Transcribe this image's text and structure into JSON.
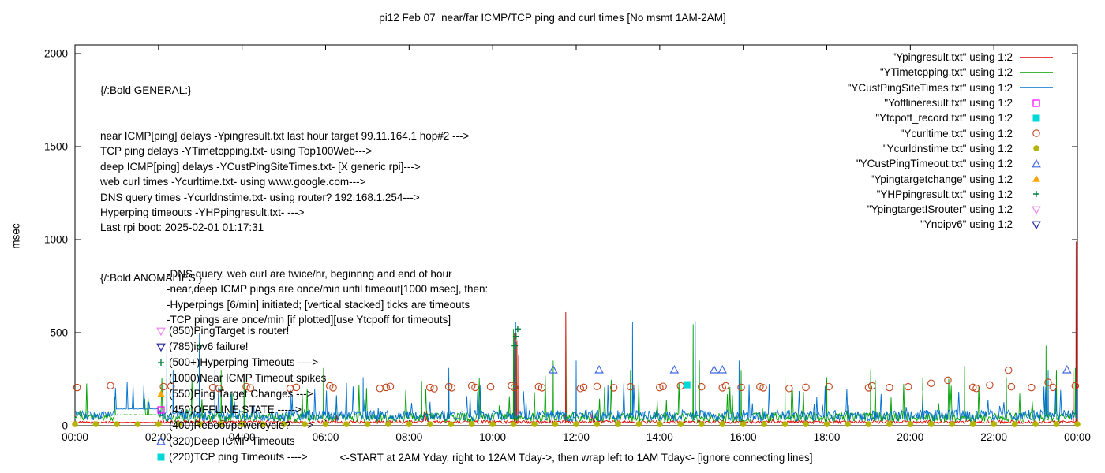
{
  "title": "pi12 Feb 07  near/far ICMP/TCP ping and curl times [No msmt 1AM-2AM]",
  "axes": {
    "ylabel": "msec",
    "xlabel": "<-START at 2AM Yday, right to 12AM Tday->, then wrap left to 1AM Tday<- [ignore connecting lines]",
    "yticks": [
      0,
      500,
      1000,
      1500,
      2000
    ],
    "xticks": [
      "00:00",
      "02:00",
      "04:00",
      "06:00",
      "08:00",
      "10:00",
      "12:00",
      "14:00",
      "16:00",
      "18:00",
      "20:00",
      "22:00",
      "00:00"
    ],
    "xrange_hours": [
      0,
      24
    ],
    "yrange": [
      0,
      2050
    ],
    "grid": false
  },
  "legend_position": "top-right",
  "legend": [
    {
      "label": "\"Ypingresult.txt\" using 1:2",
      "sample": "line",
      "color": "#dd0000"
    },
    {
      "label": "\"YTimetcpping.txt\" using 1:2",
      "sample": "line",
      "color": "#00a000"
    },
    {
      "label": "\"YCustPingSiteTimes.txt\" using 1:2",
      "sample": "line",
      "color": "#0070d0"
    },
    {
      "label": "\"Yofflineresult.txt\" using 1:2",
      "sample": "square-open",
      "color": "#ff00ff"
    },
    {
      "label": "\"Ytcpoff_record.txt\" using 1:2",
      "sample": "square-filled",
      "color": "#00d8d8"
    },
    {
      "label": "\"Ycurltime.txt\" using 1:2",
      "sample": "circle-open",
      "color": "#c0441c"
    },
    {
      "label": "\"Ycurldnstime.txt\" using 1:2",
      "sample": "circle-filled",
      "color": "#b5b500"
    },
    {
      "label": "\"YCustPingTimeout.txt\" using 1:2",
      "sample": "triangle-open",
      "color": "#4169e1"
    },
    {
      "label": "\"Ypingtargetchange\" using 1:2",
      "sample": "triangle-filled",
      "color": "#ffa500"
    },
    {
      "label": "\"YHPpingresult.txt\" using 1:2",
      "sample": "plus",
      "color": "#008040"
    },
    {
      "label": "\"YpingtargetISrouter\" using 1:2",
      "sample": "nabla-open",
      "color": "#ee82ee"
    },
    {
      "label": "\"Ynoipv6\" using 1:2",
      "sample": "nabla-open",
      "color": "#202099"
    }
  ],
  "annotations": {
    "general_header": "{/:Bold GENERAL:}",
    "general_lines": [
      "near ICMP[ping] delays -Ypingresult.txt last hour target 99.11.164.1 hop#2 --->",
      "TCP ping delays -YTimetcpping.txt- using Top100Web--->",
      "deep ICMP[ping] delays -YCustPingSiteTimes.txt- [X generic rpi]--->",
      "web curl times -Ycurltime.txt- using www.google.com--->",
      "DNS query times -Ycurldnstime.txt- using router? 192.168.1.254--->",
      "Hyperping timeouts -YHPpingresult.txt- --->",
      "Last rpi boot: 2025-02-01 01:17:31"
    ],
    "detail_lines": [
      "-DNS query, web curl are twice/hr, beginnng and end of hour",
      "-near,deep ICMP pings are once/min until timeout[1000 msec], then:",
      "-Hyperpings [6/min] initiated; [vertical stacked] ticks are timeouts",
      "-TCP pings are once/min [if plotted][use Ytcpoff for timeouts]"
    ],
    "anomalies_header": "{/:Bold ANOMALIES:}",
    "anomaly_lines": [
      {
        "marker": "nabla-open",
        "color": "#ee82ee",
        "text": "(850)PingTarget is router!"
      },
      {
        "marker": "nabla-open",
        "color": "#202099",
        "text": "(785)ipv6 failure!"
      },
      {
        "marker": "plus",
        "color": "#008040",
        "text": "(500+)Hyperping Timeouts ---->"
      },
      {
        "marker": null,
        "color": null,
        "text": "(1000)Near ICMP Timeout spikes"
      },
      {
        "marker": "triangle-filled",
        "color": "#ffa500",
        "text": "(550)Ping Target Changes --->"
      },
      {
        "marker": "square-open",
        "color": "#ff00ff",
        "text": "(450)OFFLINE STATE ----->"
      },
      {
        "marker": null,
        "color": null,
        "text": "(400)Reboot/powercycle? ---->"
      },
      {
        "marker": "triangle-open",
        "color": "#4169e1",
        "text": "(320)Deep ICMP Timeouts"
      },
      {
        "marker": "square-filled",
        "color": "#00d8d8",
        "text": "(220)TCP ping Timeouts ---->"
      }
    ]
  },
  "chart_data": {
    "type": "line",
    "title": "pi12 Feb 07  near/far ICMP/TCP ping and curl times [No msmt 1AM-2AM]",
    "xlabel": "<-START at 2AM Yday, right to 12AM Tday->, then wrap left to 1AM Tday<- [ignore connecting lines]",
    "ylabel": "msec",
    "x_unit": "hours (00:00-24:00)",
    "xlim": [
      0,
      24
    ],
    "ylim": [
      0,
      2050
    ],
    "series": [
      {
        "name": "Ypingresult.txt",
        "style": "line",
        "color": "#dd0000",
        "baseline": [
          [
            0,
            0.95,
            18,
            6
          ],
          [
            0.95,
            2.0,
            18,
            1
          ],
          [
            2.0,
            24,
            20,
            8
          ]
        ],
        "noise_spikes": [
          0.008,
          55
        ],
        "spikes": [
          [
            2.98,
            430
          ],
          [
            10.52,
            500
          ],
          [
            10.58,
            460
          ],
          [
            10.62,
            380
          ],
          [
            11.75,
            610
          ],
          [
            23.9,
            300
          ],
          [
            23.97,
            990
          ]
        ]
      },
      {
        "name": "YTimetcpping.txt",
        "style": "line",
        "color": "#00a000",
        "baseline": [
          [
            0,
            0.95,
            45,
            20
          ],
          [
            0.95,
            2.0,
            58,
            2
          ],
          [
            2.0,
            24,
            45,
            25
          ]
        ],
        "noise_spikes": [
          0.05,
          200
        ],
        "spikes": [
          [
            2.98,
            390
          ],
          [
            3.5,
            300
          ],
          [
            4.05,
            280
          ],
          [
            5.95,
            310
          ],
          [
            8.3,
            240
          ],
          [
            8.95,
            260
          ],
          [
            10.5,
            520
          ],
          [
            10.56,
            450
          ],
          [
            11.45,
            350
          ],
          [
            11.78,
            620
          ],
          [
            13.3,
            300
          ],
          [
            14.8,
            545
          ],
          [
            14.95,
            350
          ],
          [
            15.95,
            300
          ],
          [
            17.0,
            260
          ],
          [
            18.0,
            260
          ],
          [
            19.05,
            300
          ],
          [
            20.3,
            260
          ],
          [
            21.3,
            320
          ],
          [
            22.3,
            260
          ],
          [
            23.25,
            430
          ],
          [
            23.5,
            300
          ],
          [
            23.95,
            310
          ]
        ]
      },
      {
        "name": "YCustPingSiteTimes.txt",
        "style": "line",
        "color": "#0070d0",
        "baseline": [
          [
            0,
            0.95,
            55,
            25
          ],
          [
            0.95,
            2.0,
            90,
            1
          ],
          [
            2.0,
            24,
            55,
            30
          ]
        ],
        "noise_spikes": [
          0.05,
          150
        ],
        "spikes": [
          [
            2.2,
            420
          ],
          [
            2.35,
            300
          ],
          [
            2.98,
            500
          ],
          [
            3.35,
            300
          ],
          [
            6.9,
            260
          ],
          [
            8.95,
            310
          ],
          [
            10.55,
            555
          ],
          [
            12.0,
            350
          ],
          [
            13.35,
            555
          ],
          [
            14.85,
            560
          ],
          [
            15.9,
            350
          ],
          [
            23.3,
            300
          ],
          [
            23.97,
            200
          ]
        ]
      },
      {
        "name": "Yofflineresult.txt",
        "style": "points",
        "marker": "square-open",
        "color": "#ff00ff",
        "points": []
      },
      {
        "name": "Ytcpoff_record.txt",
        "style": "points",
        "marker": "square-filled",
        "color": "#00d8d8",
        "points": [
          [
            14.65,
            220
          ]
        ]
      },
      {
        "name": "Ycurltime.txt",
        "style": "points",
        "marker": "circle-open",
        "color": "#c0441c",
        "points": [
          [
            0.05,
            205
          ],
          [
            0.85,
            215
          ],
          [
            2.12,
            210
          ],
          [
            2.3,
            212
          ],
          [
            3.3,
            205
          ],
          [
            3.45,
            200
          ],
          [
            4.1,
            210
          ],
          [
            4.2,
            203
          ],
          [
            5.15,
            200
          ],
          [
            5.3,
            206
          ],
          [
            6.1,
            214
          ],
          [
            6.18,
            204
          ],
          [
            7.3,
            200
          ],
          [
            7.45,
            206
          ],
          [
            7.55,
            211
          ],
          [
            8.5,
            205
          ],
          [
            8.6,
            199
          ],
          [
            8.95,
            210
          ],
          [
            9.02,
            204
          ],
          [
            9.5,
            214
          ],
          [
            9.58,
            206
          ],
          [
            9.95,
            209
          ],
          [
            10.45,
            215
          ],
          [
            10.52,
            205
          ],
          [
            11.1,
            210
          ],
          [
            11.18,
            204
          ],
          [
            12.1,
            200
          ],
          [
            12.18,
            206
          ],
          [
            12.5,
            211
          ],
          [
            12.9,
            204
          ],
          [
            13.3,
            209
          ],
          [
            14.0,
            205
          ],
          [
            14.08,
            211
          ],
          [
            14.5,
            214
          ],
          [
            15.0,
            209
          ],
          [
            15.5,
            204
          ],
          [
            15.58,
            214
          ],
          [
            15.95,
            206
          ],
          [
            16.4,
            209
          ],
          [
            16.48,
            204
          ],
          [
            17.1,
            200
          ],
          [
            17.5,
            206
          ],
          [
            18.05,
            210
          ],
          [
            19.0,
            204
          ],
          [
            19.08,
            214
          ],
          [
            19.5,
            205
          ],
          [
            19.95,
            209
          ],
          [
            20.5,
            228
          ],
          [
            20.9,
            244
          ],
          [
            21.5,
            206
          ],
          [
            21.58,
            200
          ],
          [
            21.9,
            219
          ],
          [
            22.35,
            298
          ],
          [
            22.42,
            209
          ],
          [
            22.9,
            205
          ],
          [
            23.3,
            233
          ],
          [
            23.42,
            206
          ],
          [
            23.95,
            214
          ]
        ]
      },
      {
        "name": "Ycurldnstime.txt",
        "style": "points",
        "marker": "circle-filled",
        "color": "#b5b500",
        "points_spec": {
          "start": 0,
          "end": 24,
          "step": 0.5,
          "value": 8
        }
      },
      {
        "name": "YCustPingTimeout.txt",
        "style": "points",
        "marker": "triangle-open",
        "color": "#4169e1",
        "points": [
          [
            11.45,
            300
          ],
          [
            12.55,
            300
          ],
          [
            14.35,
            300
          ],
          [
            15.3,
            300
          ],
          [
            15.5,
            300
          ],
          [
            23.75,
            300
          ]
        ]
      },
      {
        "name": "Ypingtargetchange",
        "style": "points",
        "marker": "triangle-filled",
        "color": "#ffa500",
        "points": []
      },
      {
        "name": "YHPpingresult.txt",
        "style": "points",
        "marker": "plus",
        "color": "#008040",
        "points": [
          [
            2.98,
            430
          ],
          [
            10.53,
            430
          ],
          [
            10.56,
            480
          ],
          [
            10.6,
            520
          ]
        ]
      },
      {
        "name": "YpingtargetISrouter",
        "style": "points",
        "marker": "nabla-open",
        "color": "#ee82ee",
        "points": []
      },
      {
        "name": "Ynoipv6",
        "style": "points",
        "marker": "nabla-open",
        "color": "#202099",
        "points": []
      }
    ]
  }
}
